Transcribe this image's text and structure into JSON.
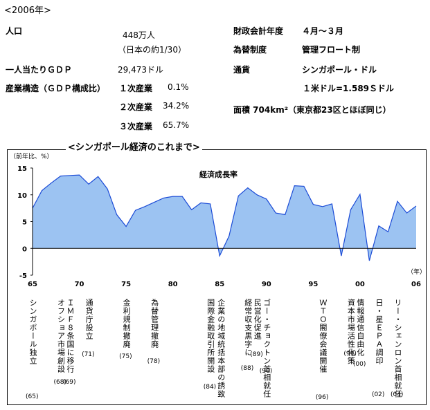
{
  "header": {
    "year_label": "<2006年>"
  },
  "facts": {
    "population_label": "人口",
    "population_value": "448万人",
    "population_note": "（日本の約1/30）",
    "gdp_label": "一人当たりＧＤＰ",
    "gdp_value": "29,473ドル",
    "industry_label": "産業構造（ＧＤＰ構成比）",
    "industry": [
      {
        "label": "１次産業",
        "value": "0.1%"
      },
      {
        "label": "２次産業",
        "value": "34.2%"
      },
      {
        "label": "３次産業",
        "value": "65.7%"
      }
    ],
    "fiscal_label": "財政会計年度",
    "fiscal_value": "４月～３月",
    "exchange_label": "為替制度",
    "exchange_value": "管理フロート制",
    "currency_label": "通貨",
    "currency_value": "シンガポール・ドル",
    "rate_value": "１米ドル=1.589Ｓドル",
    "area_text": "面積 704km²（東京都23区とほぼ同じ）"
  },
  "chart_data": {
    "type": "area",
    "title": "<シンガポール経済のこれまで>",
    "ylabel": "（前年比、%）",
    "xlabel": "（年）",
    "series_label": "経済成長率",
    "ylim": [
      -5,
      15
    ],
    "yticks": [
      "15",
      "10",
      "5",
      "0",
      "-5"
    ],
    "xlim": [
      1965,
      2006
    ],
    "xticks": [
      "65",
      "70",
      "75",
      "80",
      "85",
      "90",
      "95",
      "00",
      "06"
    ],
    "x": [
      1965,
      1966,
      1967,
      1968,
      1969,
      1970,
      1971,
      1972,
      1973,
      1974,
      1975,
      1976,
      1977,
      1978,
      1979,
      1980,
      1981,
      1982,
      1983,
      1984,
      1985,
      1986,
      1987,
      1988,
      1989,
      1990,
      1991,
      1992,
      1993,
      1994,
      1995,
      1996,
      1997,
      1998,
      1999,
      2000,
      2001,
      2002,
      2003,
      2004,
      2005,
      2006
    ],
    "values": [
      7.5,
      10.8,
      12.2,
      13.5,
      13.6,
      13.7,
      12.0,
      13.4,
      11.1,
      6.3,
      4.1,
      7.1,
      7.8,
      8.6,
      9.4,
      9.7,
      9.7,
      7.2,
      8.5,
      8.3,
      -1.4,
      2.3,
      9.8,
      11.3,
      10.0,
      9.2,
      6.6,
      6.3,
      11.7,
      11.6,
      8.2,
      7.8,
      8.3,
      -1.4,
      7.2,
      10.1,
      -2.3,
      4.2,
      3.1,
      8.8,
      6.6,
      7.9
    ],
    "events": [
      {
        "year": "1965",
        "text": "シンガポール独立",
        "num": "(65)"
      },
      {
        "year": "1968",
        "text": "オフショア市場創設",
        "num": "(68)"
      },
      {
        "year": "1969",
        "text": "ＩＭＦ８条国に移行",
        "num": "(69)"
      },
      {
        "year": "1971",
        "text": "通貨庁設立",
        "num": "(71)"
      },
      {
        "year": "1975",
        "text": "金利規制撤廃",
        "num": "(75)"
      },
      {
        "year": "1978",
        "text": "為替管理撤廃",
        "num": "(78)"
      },
      {
        "year": "1984",
        "text": "国際金融取引所開設",
        "num": "(84)"
      },
      {
        "year": "1984",
        "text": "企業の地域統括本部の誘致",
        "num": ""
      },
      {
        "year": "1988",
        "text": "経常収支黒字に",
        "num": "(88)"
      },
      {
        "year": "1989",
        "text": "民営化促進",
        "num": "(89)"
      },
      {
        "year": "1990",
        "text": "ゴー・チョクトン首相就任",
        "num": "(90)"
      },
      {
        "year": "1996",
        "text": "ＷＴＯ閣僚会議開催",
        "num": "(96)"
      },
      {
        "year": "1999",
        "text": "資本市場活性化策",
        "num": "(99)"
      },
      {
        "year": "2000",
        "text": "情報通信自由化",
        "num": "(00)"
      },
      {
        "year": "2002",
        "text": "日・星ＥＰＡ調印",
        "num": "(02)"
      },
      {
        "year": "2004",
        "text": "リー・シェンロン首相就任",
        "num": "(04)"
      }
    ],
    "colors": {
      "fill": "#9cc3f2",
      "line": "#1a4ad6"
    },
    "legend": "none",
    "grid": false
  }
}
